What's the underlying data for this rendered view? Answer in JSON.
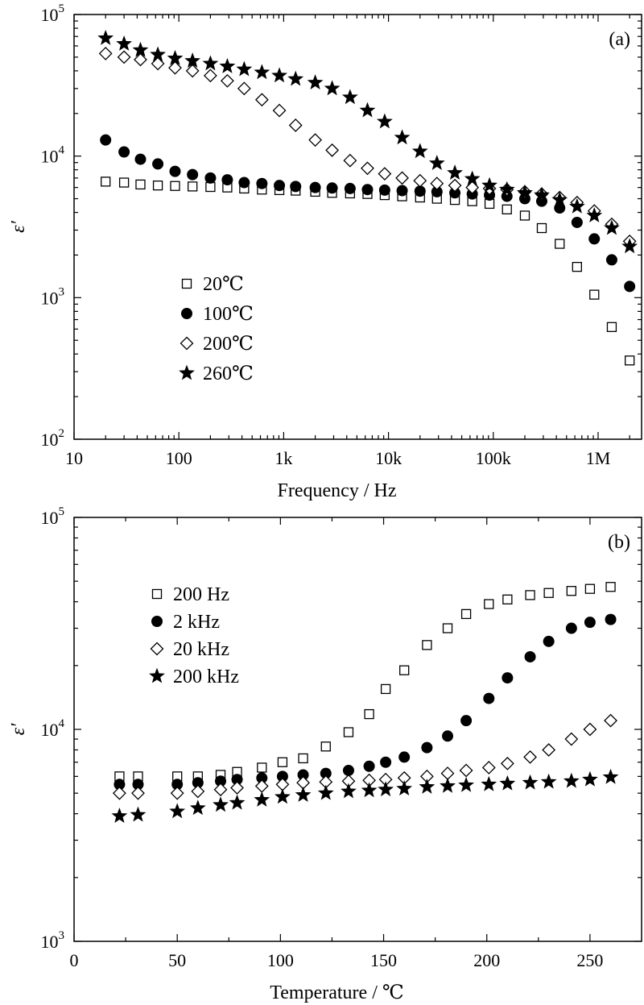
{
  "chart_data": [
    {
      "type": "scatter",
      "panel_label": "(a)",
      "xlabel": "Frequency / Hz",
      "ylabel": "ε′",
      "xscale": "log",
      "yscale": "log",
      "xlim": [
        10,
        2600000
      ],
      "ylim": [
        100,
        100000
      ],
      "x_ticks": [
        {
          "value": 10,
          "label": "10"
        },
        {
          "value": 100,
          "label": "100"
        },
        {
          "value": 1000,
          "label": "1k"
        },
        {
          "value": 10000,
          "label": "10k"
        },
        {
          "value": 100000,
          "label": "100k"
        },
        {
          "value": 1000000,
          "label": "1M"
        }
      ],
      "y_ticks": [
        {
          "value": 100,
          "base": "10",
          "exp": "2"
        },
        {
          "value": 1000,
          "base": "10",
          "exp": "3"
        },
        {
          "value": 10000,
          "base": "10",
          "exp": "4"
        },
        {
          "value": 100000,
          "base": "10",
          "exp": "5"
        }
      ],
      "legend_position": "center-left",
      "series": [
        {
          "name": "20℃",
          "marker": "square-open",
          "x": [
            20,
            30,
            43,
            63,
            92,
            135,
            200,
            290,
            420,
            620,
            910,
            1300,
            2000,
            2900,
            4300,
            6300,
            9200,
            13500,
            20000,
            29000,
            43000,
            63000,
            92000,
            135000,
            200000,
            290000,
            430000,
            630000,
            920000,
            1350000,
            2000000
          ],
          "y": [
            6600,
            6500,
            6300,
            6200,
            6150,
            6100,
            6050,
            6000,
            5900,
            5800,
            5750,
            5700,
            5600,
            5500,
            5450,
            5400,
            5300,
            5200,
            5100,
            5000,
            4900,
            4800,
            4600,
            4200,
            3800,
            3100,
            2400,
            1650,
            1050,
            620,
            360
          ]
        },
        {
          "name": "100℃",
          "marker": "circle-filled",
          "x": [
            20,
            30,
            43,
            63,
            92,
            135,
            200,
            290,
            420,
            620,
            910,
            1300,
            2000,
            2900,
            4300,
            6300,
            9200,
            13500,
            20000,
            29000,
            43000,
            63000,
            92000,
            135000,
            200000,
            290000,
            430000,
            630000,
            920000,
            1350000,
            2000000
          ],
          "y": [
            13000,
            10700,
            9500,
            8800,
            7800,
            7400,
            7000,
            6800,
            6500,
            6400,
            6200,
            6100,
            6000,
            5950,
            5900,
            5800,
            5750,
            5700,
            5650,
            5600,
            5500,
            5400,
            5300,
            5200,
            5000,
            4800,
            4300,
            3400,
            2600,
            1850,
            1200
          ]
        },
        {
          "name": "200℃",
          "marker": "diamond-open",
          "x": [
            20,
            30,
            43,
            63,
            92,
            135,
            200,
            290,
            420,
            620,
            910,
            1300,
            2000,
            2900,
            4300,
            6300,
            9200,
            13500,
            20000,
            29000,
            43000,
            63000,
            92000,
            135000,
            200000,
            290000,
            430000,
            630000,
            920000,
            1350000,
            2000000
          ],
          "y": [
            53000,
            50000,
            48000,
            45000,
            42000,
            40000,
            37000,
            34000,
            30000,
            25000,
            21000,
            16500,
            13000,
            11000,
            9300,
            8200,
            7500,
            7000,
            6700,
            6400,
            6200,
            6000,
            5900,
            5800,
            5600,
            5400,
            5100,
            4700,
            4100,
            3300,
            2500
          ]
        },
        {
          "name": "260℃",
          "marker": "star-filled",
          "x": [
            20,
            30,
            43,
            63,
            92,
            135,
            200,
            290,
            420,
            620,
            910,
            1300,
            2000,
            2900,
            4300,
            6300,
            9200,
            13500,
            20000,
            29000,
            43000,
            63000,
            92000,
            135000,
            200000,
            290000,
            430000,
            630000,
            920000,
            1350000,
            2000000
          ],
          "y": [
            68000,
            62000,
            56000,
            52000,
            49000,
            47000,
            45000,
            43000,
            41000,
            39000,
            37000,
            35000,
            33000,
            30000,
            26000,
            21000,
            17500,
            13500,
            10800,
            8900,
            7600,
            6900,
            6200,
            5800,
            5500,
            5300,
            4900,
            4400,
            3800,
            3100,
            2300
          ]
        }
      ]
    },
    {
      "type": "scatter",
      "panel_label": "(b)",
      "xlabel": "Temperature / ℃",
      "ylabel": "ε′",
      "xscale": "linear",
      "yscale": "log",
      "xlim": [
        0,
        275
      ],
      "ylim": [
        1000,
        100000
      ],
      "x_ticks": [
        {
          "value": 0,
          "label": "0"
        },
        {
          "value": 50,
          "label": "50"
        },
        {
          "value": 100,
          "label": "100"
        },
        {
          "value": 150,
          "label": "150"
        },
        {
          "value": 200,
          "label": "200"
        },
        {
          "value": 250,
          "label": "250"
        }
      ],
      "y_ticks": [
        {
          "value": 1000,
          "base": "10",
          "exp": "3"
        },
        {
          "value": 10000,
          "base": "10",
          "exp": "4"
        },
        {
          "value": 100000,
          "base": "10",
          "exp": "5"
        }
      ],
      "legend_position": "top-left",
      "series": [
        {
          "name": "200 Hz",
          "marker": "square-open",
          "x": [
            22,
            31,
            50,
            60,
            71,
            79,
            91,
            101,
            111,
            122,
            133,
            143,
            151,
            160,
            171,
            181,
            190,
            201,
            210,
            221,
            230,
            241,
            250,
            260
          ],
          "y": [
            6000,
            6000,
            6000,
            6000,
            6100,
            6300,
            6600,
            7000,
            7300,
            8300,
            9700,
            11800,
            15500,
            19000,
            25000,
            30000,
            35000,
            39000,
            41000,
            43000,
            44000,
            45000,
            46000,
            47000
          ]
        },
        {
          "name": "2 kHz",
          "marker": "circle-filled",
          "x": [
            22,
            31,
            50,
            60,
            71,
            79,
            91,
            101,
            111,
            122,
            133,
            143,
            151,
            160,
            171,
            181,
            190,
            201,
            210,
            221,
            230,
            241,
            250,
            260
          ],
          "y": [
            5500,
            5500,
            5500,
            5600,
            5700,
            5800,
            5900,
            6000,
            6100,
            6200,
            6400,
            6700,
            7000,
            7400,
            8200,
            9300,
            11000,
            14000,
            17500,
            22000,
            26000,
            30000,
            32000,
            33000
          ]
        },
        {
          "name": "20 kHz",
          "marker": "diamond-open",
          "x": [
            22,
            31,
            50,
            60,
            71,
            79,
            91,
            101,
            111,
            122,
            133,
            143,
            151,
            160,
            171,
            181,
            190,
            201,
            210,
            221,
            230,
            241,
            250,
            260
          ],
          "y": [
            5000,
            5000,
            5000,
            5100,
            5200,
            5300,
            5400,
            5500,
            5600,
            5650,
            5700,
            5750,
            5800,
            5900,
            6000,
            6200,
            6400,
            6600,
            6900,
            7400,
            8000,
            9000,
            10000,
            11000
          ]
        },
        {
          "name": "200 kHz",
          "marker": "star-filled",
          "x": [
            22,
            31,
            50,
            60,
            71,
            79,
            91,
            101,
            111,
            122,
            133,
            143,
            151,
            160,
            171,
            181,
            190,
            201,
            210,
            221,
            230,
            241,
            250,
            260
          ],
          "y": [
            3900,
            3950,
            4100,
            4250,
            4400,
            4500,
            4650,
            4800,
            4900,
            5000,
            5100,
            5150,
            5200,
            5250,
            5350,
            5400,
            5450,
            5500,
            5550,
            5600,
            5650,
            5700,
            5800,
            5950
          ]
        }
      ]
    }
  ]
}
